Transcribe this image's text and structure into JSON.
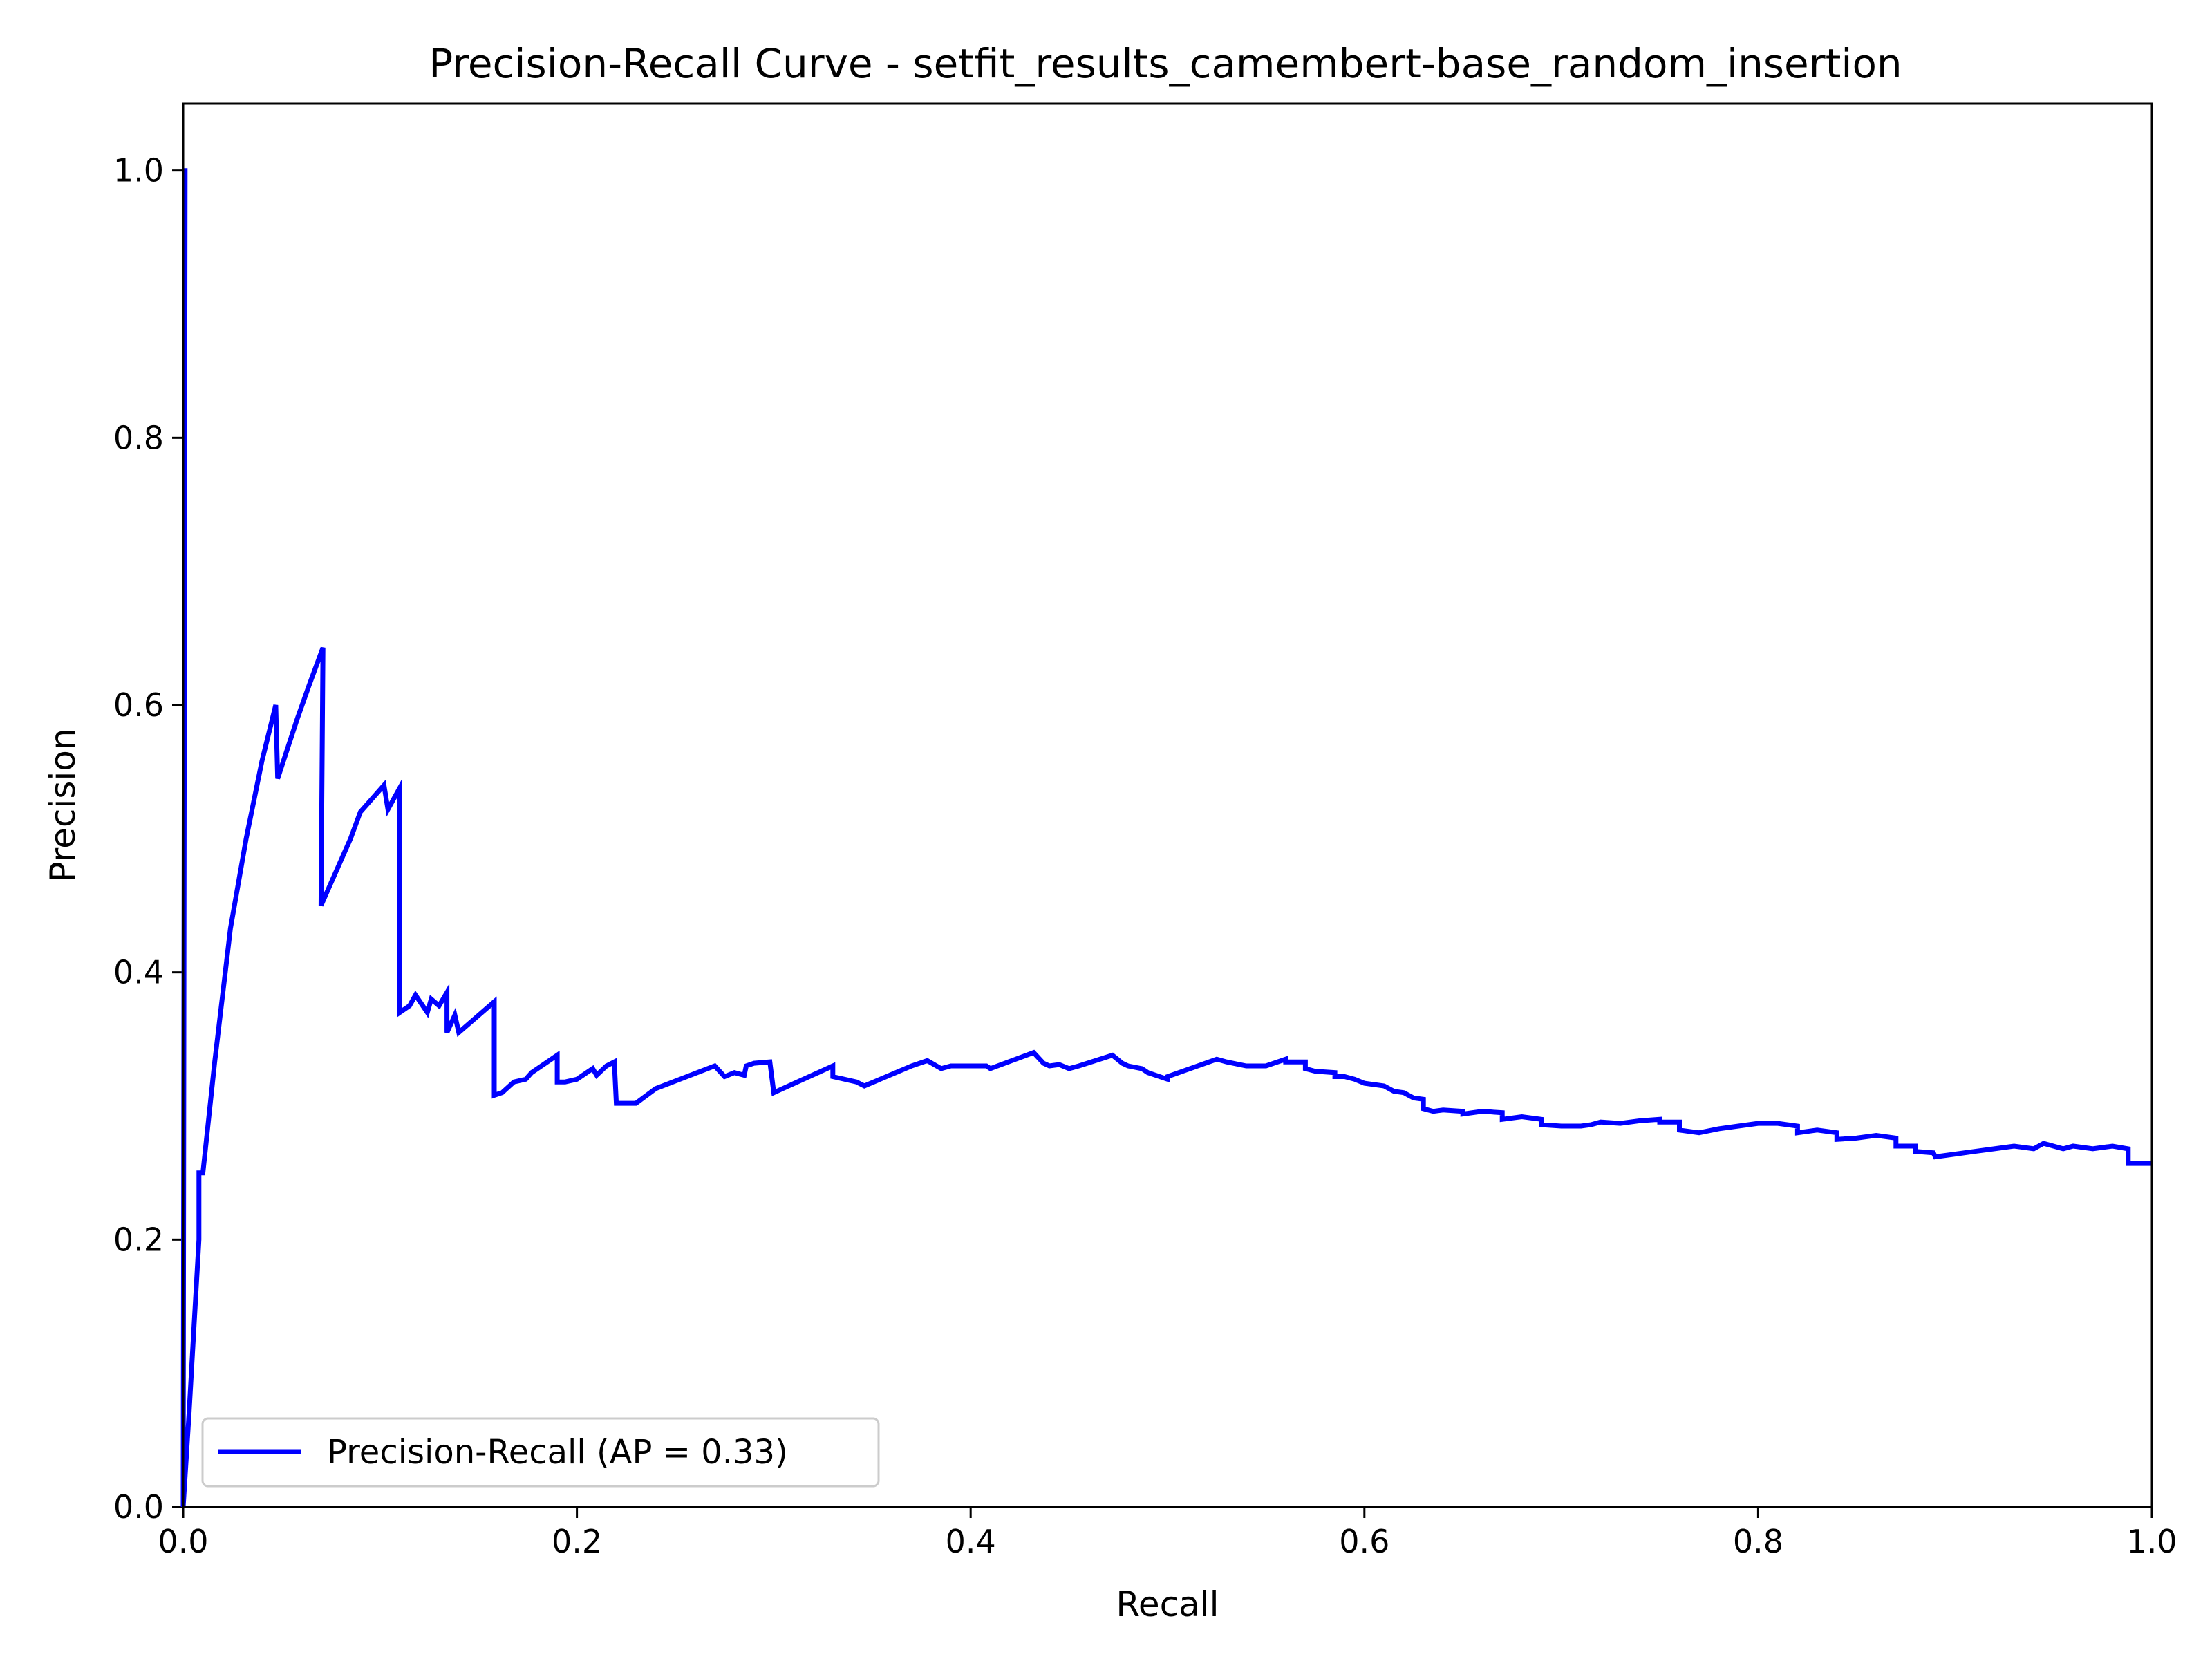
{
  "chart_data": {
    "type": "line",
    "title": "Precision-Recall Curve - setfit_results_camembert-base_random_insertion",
    "xlabel": "Recall",
    "ylabel": "Precision",
    "xlim": [
      0.0,
      1.0
    ],
    "ylim": [
      0.0,
      1.05
    ],
    "x_ticks": [
      "0.0",
      "0.2",
      "0.4",
      "0.6",
      "0.8",
      "1.0"
    ],
    "y_ticks": [
      "0.0",
      "0.2",
      "0.4",
      "0.6",
      "0.8",
      "1.0"
    ],
    "grid": false,
    "legend": {
      "position": "lower-left",
      "entries": [
        "Precision-Recall (AP = 0.33)"
      ]
    },
    "series": [
      {
        "name": "Precision-Recall (AP = 0.33)",
        "color": "#0000ff",
        "points": [
          [
            1.0,
            0.257
          ],
          [
            0.988,
            0.257
          ],
          [
            0.988,
            0.268
          ],
          [
            0.98,
            0.27
          ],
          [
            0.97,
            0.268
          ],
          [
            0.96,
            0.27
          ],
          [
            0.955,
            0.268
          ],
          [
            0.95,
            0.27
          ],
          [
            0.945,
            0.272
          ],
          [
            0.94,
            0.268
          ],
          [
            0.93,
            0.27
          ],
          [
            0.92,
            0.268
          ],
          [
            0.91,
            0.266
          ],
          [
            0.9,
            0.264
          ],
          [
            0.89,
            0.262
          ],
          [
            0.889,
            0.265
          ],
          [
            0.88,
            0.266
          ],
          [
            0.88,
            0.27
          ],
          [
            0.87,
            0.27
          ],
          [
            0.87,
            0.276
          ],
          [
            0.86,
            0.278
          ],
          [
            0.85,
            0.276
          ],
          [
            0.84,
            0.275
          ],
          [
            0.84,
            0.28
          ],
          [
            0.83,
            0.282
          ],
          [
            0.82,
            0.28
          ],
          [
            0.82,
            0.285
          ],
          [
            0.81,
            0.287
          ],
          [
            0.8,
            0.287
          ],
          [
            0.79,
            0.285
          ],
          [
            0.78,
            0.283
          ],
          [
            0.77,
            0.28
          ],
          [
            0.76,
            0.282
          ],
          [
            0.76,
            0.288
          ],
          [
            0.75,
            0.288
          ],
          [
            0.75,
            0.29
          ],
          [
            0.74,
            0.289
          ],
          [
            0.73,
            0.287
          ],
          [
            0.72,
            0.288
          ],
          [
            0.715,
            0.286
          ],
          [
            0.71,
            0.285
          ],
          [
            0.7,
            0.285
          ],
          [
            0.69,
            0.286
          ],
          [
            0.69,
            0.29
          ],
          [
            0.68,
            0.292
          ],
          [
            0.67,
            0.29
          ],
          [
            0.67,
            0.295
          ],
          [
            0.66,
            0.296
          ],
          [
            0.65,
            0.294
          ],
          [
            0.65,
            0.296
          ],
          [
            0.64,
            0.297
          ],
          [
            0.635,
            0.296
          ],
          [
            0.63,
            0.298
          ],
          [
            0.63,
            0.305
          ],
          [
            0.625,
            0.306
          ],
          [
            0.62,
            0.31
          ],
          [
            0.62,
            0.31
          ],
          [
            0.615,
            0.311
          ],
          [
            0.61,
            0.315
          ],
          [
            0.6,
            0.317
          ],
          [
            0.595,
            0.32
          ],
          [
            0.59,
            0.322
          ],
          [
            0.585,
            0.322
          ],
          [
            0.585,
            0.325
          ],
          [
            0.575,
            0.326
          ],
          [
            0.57,
            0.328
          ],
          [
            0.57,
            0.333
          ],
          [
            0.56,
            0.333
          ],
          [
            0.56,
            0.335
          ],
          [
            0.55,
            0.33
          ],
          [
            0.54,
            0.33
          ],
          [
            0.53,
            0.333
          ],
          [
            0.525,
            0.335
          ],
          [
            0.5,
            0.322
          ],
          [
            0.5,
            0.32
          ],
          [
            0.49,
            0.325
          ],
          [
            0.487,
            0.328
          ],
          [
            0.48,
            0.33
          ],
          [
            0.477,
            0.332
          ],
          [
            0.472,
            0.338
          ],
          [
            0.455,
            0.33
          ],
          [
            0.45,
            0.328
          ],
          [
            0.445,
            0.331
          ],
          [
            0.44,
            0.33
          ],
          [
            0.437,
            0.332
          ],
          [
            0.432,
            0.34
          ],
          [
            0.41,
            0.328
          ],
          [
            0.408,
            0.33
          ],
          [
            0.39,
            0.33
          ],
          [
            0.385,
            0.328
          ],
          [
            0.378,
            0.334
          ],
          [
            0.37,
            0.33
          ],
          [
            0.346,
            0.315
          ],
          [
            0.342,
            0.318
          ],
          [
            0.33,
            0.322
          ],
          [
            0.33,
            0.33
          ],
          [
            0.3,
            0.31
          ],
          [
            0.298,
            0.333
          ],
          [
            0.29,
            0.332
          ],
          [
            0.286,
            0.33
          ],
          [
            0.285,
            0.323
          ],
          [
            0.28,
            0.325
          ],
          [
            0.275,
            0.322
          ],
          [
            0.27,
            0.33
          ],
          [
            0.24,
            0.313
          ],
          [
            0.23,
            0.302
          ],
          [
            0.22,
            0.302
          ],
          [
            0.219,
            0.333
          ],
          [
            0.215,
            0.33
          ],
          [
            0.21,
            0.323
          ],
          [
            0.208,
            0.328
          ],
          [
            0.2,
            0.32
          ],
          [
            0.194,
            0.318
          ],
          [
            0.19,
            0.318
          ],
          [
            0.19,
            0.338
          ],
          [
            0.177,
            0.325
          ],
          [
            0.174,
            0.32
          ],
          [
            0.168,
            0.318
          ],
          [
            0.162,
            0.31
          ],
          [
            0.158,
            0.308
          ],
          [
            0.158,
            0.378
          ],
          [
            0.14,
            0.355
          ],
          [
            0.138,
            0.368
          ],
          [
            0.134,
            0.355
          ],
          [
            0.134,
            0.385
          ],
          [
            0.13,
            0.375
          ],
          [
            0.126,
            0.38
          ],
          [
            0.124,
            0.37
          ],
          [
            0.118,
            0.383
          ],
          [
            0.115,
            0.375
          ],
          [
            0.11,
            0.37
          ],
          [
            0.11,
            0.538
          ],
          [
            0.104,
            0.522
          ],
          [
            0.102,
            0.54
          ],
          [
            0.09,
            0.52
          ],
          [
            0.085,
            0.5
          ],
          [
            0.07,
            0.45
          ],
          [
            0.071,
            0.643
          ],
          [
            0.064,
            0.615
          ],
          [
            0.058,
            0.59
          ],
          [
            0.048,
            0.545
          ],
          [
            0.047,
            0.6
          ],
          [
            0.04,
            0.558
          ],
          [
            0.032,
            0.5
          ],
          [
            0.024,
            0.433
          ],
          [
            0.016,
            0.333
          ],
          [
            0.01,
            0.25
          ],
          [
            0.008,
            0.25
          ],
          [
            0.008,
            0.2
          ],
          [
            0.003,
            0.07
          ],
          [
            0.0,
            0.0
          ],
          [
            0.001,
            1.0
          ],
          [
            0.0,
            1.0
          ]
        ]
      }
    ]
  }
}
